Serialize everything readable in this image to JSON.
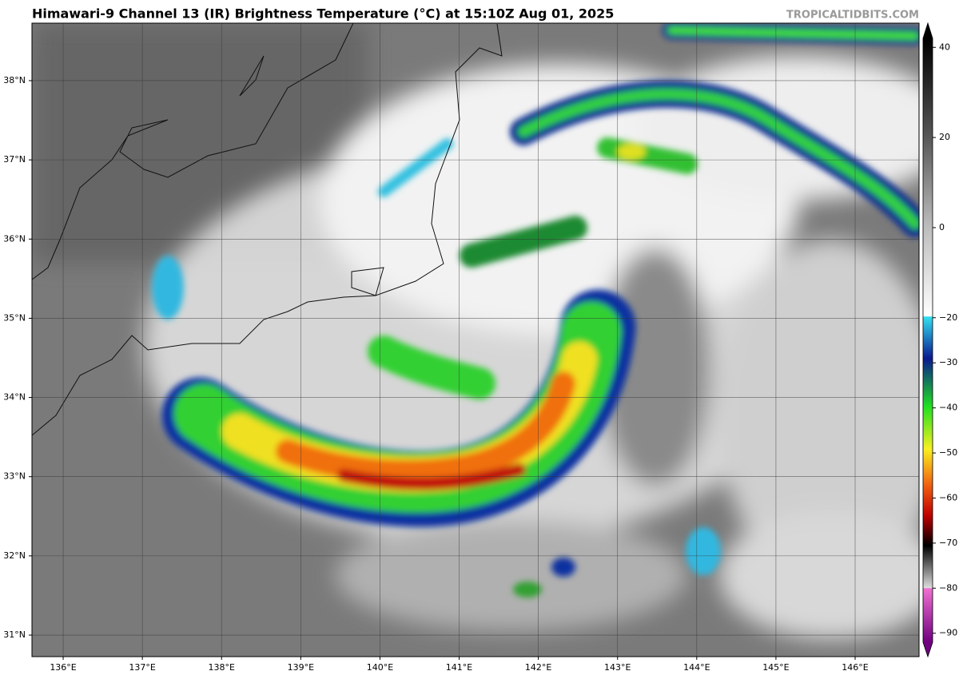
{
  "header": {
    "title": "Himawari-9 Channel 13 (IR) Brightness Temperature (°C) at 15:10Z Aug 01, 2025",
    "watermark": "TROPICALTIDBITS.COM"
  },
  "map": {
    "xlim": [
      135.606,
      146.807
    ],
    "ylim": [
      30.728,
      38.726
    ],
    "xticks": [
      {
        "value": 136,
        "label": "136°E"
      },
      {
        "value": 137,
        "label": "137°E"
      },
      {
        "value": 138,
        "label": "138°E"
      },
      {
        "value": 139,
        "label": "139°E"
      },
      {
        "value": 140,
        "label": "140°E"
      },
      {
        "value": 141,
        "label": "141°E"
      },
      {
        "value": 142,
        "label": "142°E"
      },
      {
        "value": 143,
        "label": "143°E"
      },
      {
        "value": 144,
        "label": "144°E"
      },
      {
        "value": 145,
        "label": "145°E"
      },
      {
        "value": 146,
        "label": "146°E"
      }
    ],
    "yticks": [
      {
        "value": 31,
        "label": "31°N"
      },
      {
        "value": 32,
        "label": "32°N"
      },
      {
        "value": 33,
        "label": "33°N"
      },
      {
        "value": 34,
        "label": "34°N"
      },
      {
        "value": 35,
        "label": "35°N"
      },
      {
        "value": 36,
        "label": "36°N"
      },
      {
        "value": 37,
        "label": "37°N"
      },
      {
        "value": 38,
        "label": "38°N"
      }
    ]
  },
  "colorbar": {
    "clim": [
      -92,
      42
    ],
    "ticks": [
      40,
      20,
      0,
      {
        "value": -20,
        "label": "−20"
      },
      {
        "value": -30,
        "label": "−30"
      },
      {
        "value": -40,
        "label": "−40"
      },
      {
        "value": -50,
        "label": "−50"
      },
      {
        "value": -60,
        "label": "−60"
      },
      {
        "value": -70,
        "label": "−70"
      },
      {
        "value": -80,
        "label": "−80"
      },
      {
        "value": -90,
        "label": "−90"
      }
    ]
  }
}
